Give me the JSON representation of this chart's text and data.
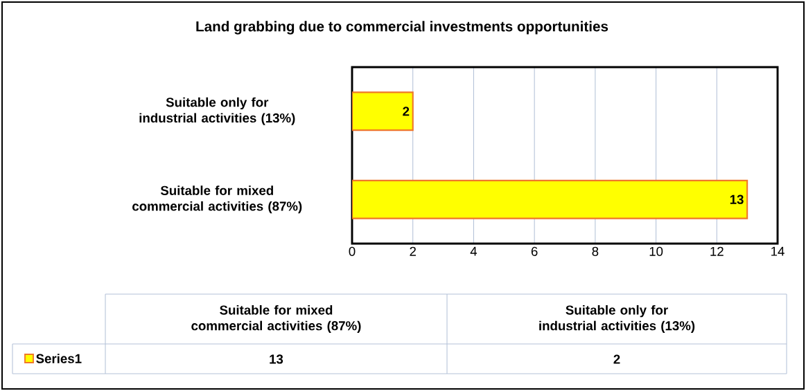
{
  "chart_data": {
    "type": "bar",
    "orientation": "horizontal",
    "title": "Land grabbing  due to commercial investments opportunities",
    "categories": [
      "Suitable only for industrial activities (13%)",
      "Suitable for mixed commercial activities (87%)"
    ],
    "series": [
      {
        "name": "Series1",
        "color": "#ffff00",
        "values": [
          2,
          13
        ],
        "value_labels": [
          "2",
          "13"
        ]
      }
    ],
    "xlim": [
      0,
      14
    ],
    "xticks": [
      0,
      2,
      4,
      6,
      8,
      10,
      12,
      14
    ],
    "grid": "x",
    "legend": "bottom"
  }
}
